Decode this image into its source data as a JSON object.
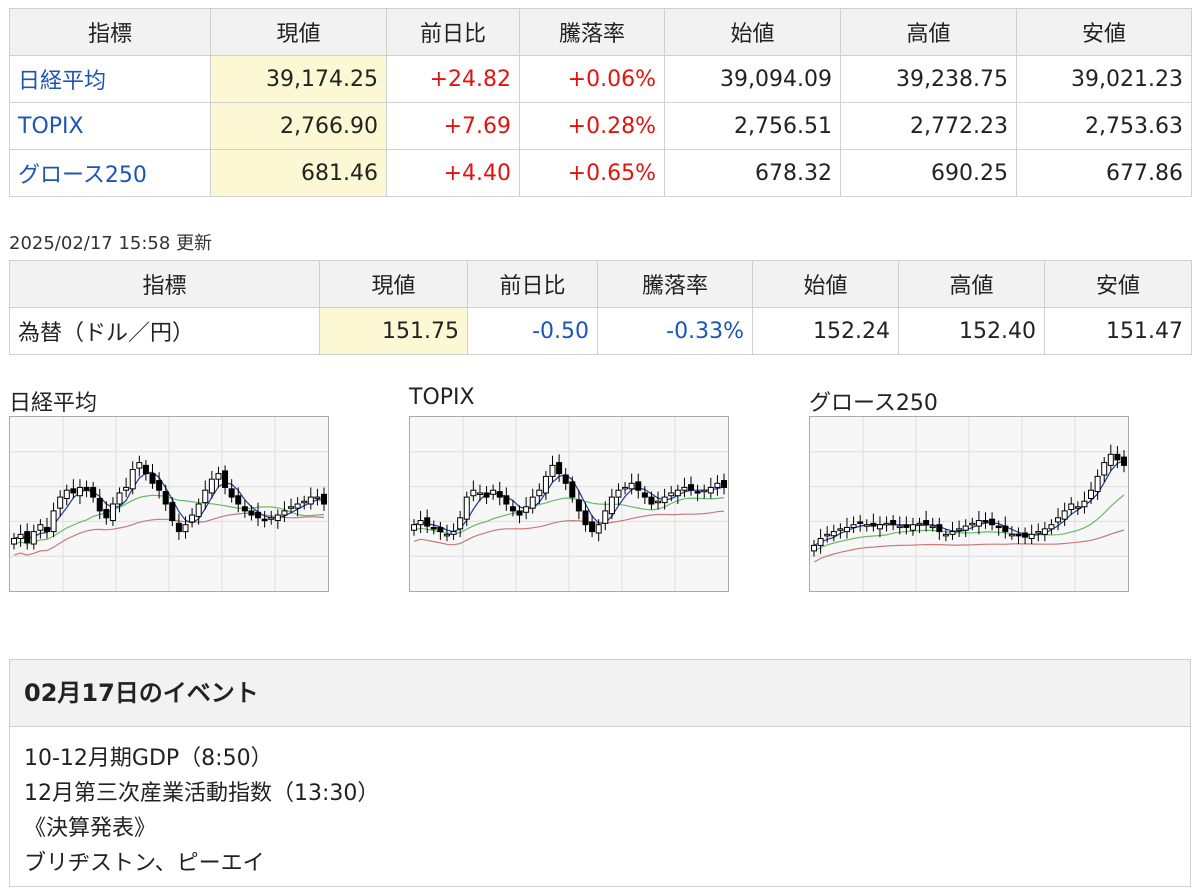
{
  "stock_table": {
    "headers": [
      "指標",
      "現値",
      "前日比",
      "騰落率",
      "始値",
      "高値",
      "安値"
    ],
    "rows": [
      {
        "name": "日経平均",
        "current": "39,174.25",
        "change": "+24.82",
        "rate": "+0.06%",
        "open": "39,094.09",
        "high": "39,238.75",
        "low": "39,021.23"
      },
      {
        "name": "TOPIX",
        "current": "2,766.90",
        "change": "+7.69",
        "rate": "+0.28%",
        "open": "2,756.51",
        "high": "2,772.23",
        "low": "2,753.63"
      },
      {
        "name": "グロース250",
        "current": "681.46",
        "change": "+4.40",
        "rate": "+0.65%",
        "open": "678.32",
        "high": "690.25",
        "low": "677.86"
      }
    ]
  },
  "updated": "2025/02/17 15:58 更新",
  "fx_table": {
    "headers": [
      "指標",
      "現値",
      "前日比",
      "騰落率",
      "始値",
      "高値",
      "安値"
    ],
    "row": {
      "name": "為替（ドル／円）",
      "current": "151.75",
      "change": "-0.50",
      "rate": "-0.33%",
      "open": "152.24",
      "high": "152.40",
      "low": "151.47"
    }
  },
  "charts": {
    "titles": [
      "日経平均",
      "TOPIX",
      "グロース250"
    ],
    "colors": {
      "candle": "#000000",
      "ma_short": "#1f3a93",
      "ma_mid": "#66bb66",
      "ma_long": "#c97b7b",
      "grid": "#dddddd",
      "background": "#f7f7f7"
    }
  },
  "events": {
    "title": "02月17日のイベント",
    "items": [
      "10-12月期GDP（8:50）",
      "12月第三次産業活動指数（13:30）",
      "《決算発表》",
      "ブリヂストン、ピーエイ"
    ]
  }
}
